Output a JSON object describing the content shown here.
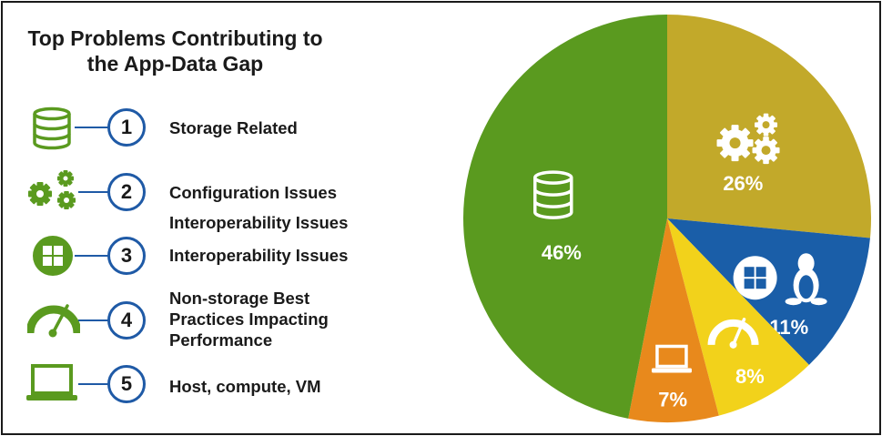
{
  "chart_data": {
    "type": "pie",
    "title_lines": [
      "Top Problems Contributing to",
      "the App-Data Gap"
    ],
    "slices": [
      {
        "label": "Configuration Issues",
        "value": 26,
        "value_label": "26%",
        "color": "#c2a92a",
        "icon": "gears-icon"
      },
      {
        "label": "Interoperability Issues",
        "value": 11,
        "value_label": "11%",
        "color": "#1a5ea8",
        "icon": "windows-linux-icon"
      },
      {
        "label": "Non-storage Best Practices Impacting Performance",
        "value": 8,
        "value_label": "8%",
        "color": "#f2d21b",
        "icon": "gauge-icon"
      },
      {
        "label": "Host, compute, VM",
        "value": 7,
        "value_label": "7%",
        "color": "#e8891c",
        "icon": "laptop-icon"
      },
      {
        "label": "Storage Related",
        "value": 46,
        "value_label": "46%",
        "color": "#5a9a1f",
        "icon": "database-icon"
      }
    ],
    "legend": [
      {
        "number": "1",
        "lines": [
          "Storage Related"
        ],
        "icon": "database-icon"
      },
      {
        "number": "2",
        "lines": [
          "Configuration Issues",
          "Interoperability Issues"
        ],
        "icon": "gears-icon"
      },
      {
        "number": "3",
        "lines": [
          "Interoperability Issues"
        ],
        "icon": "windows-icon"
      },
      {
        "number": "4",
        "lines": [
          "Non-storage Best",
          "Practices Impacting",
          "Performance"
        ],
        "icon": "gauge-icon"
      },
      {
        "number": "5",
        "lines": [
          "Host, compute, VM"
        ],
        "icon": "laptop-icon"
      }
    ],
    "legend_icon_color": "#5a9a1f",
    "number_ring_color": "#1f5aa6"
  }
}
